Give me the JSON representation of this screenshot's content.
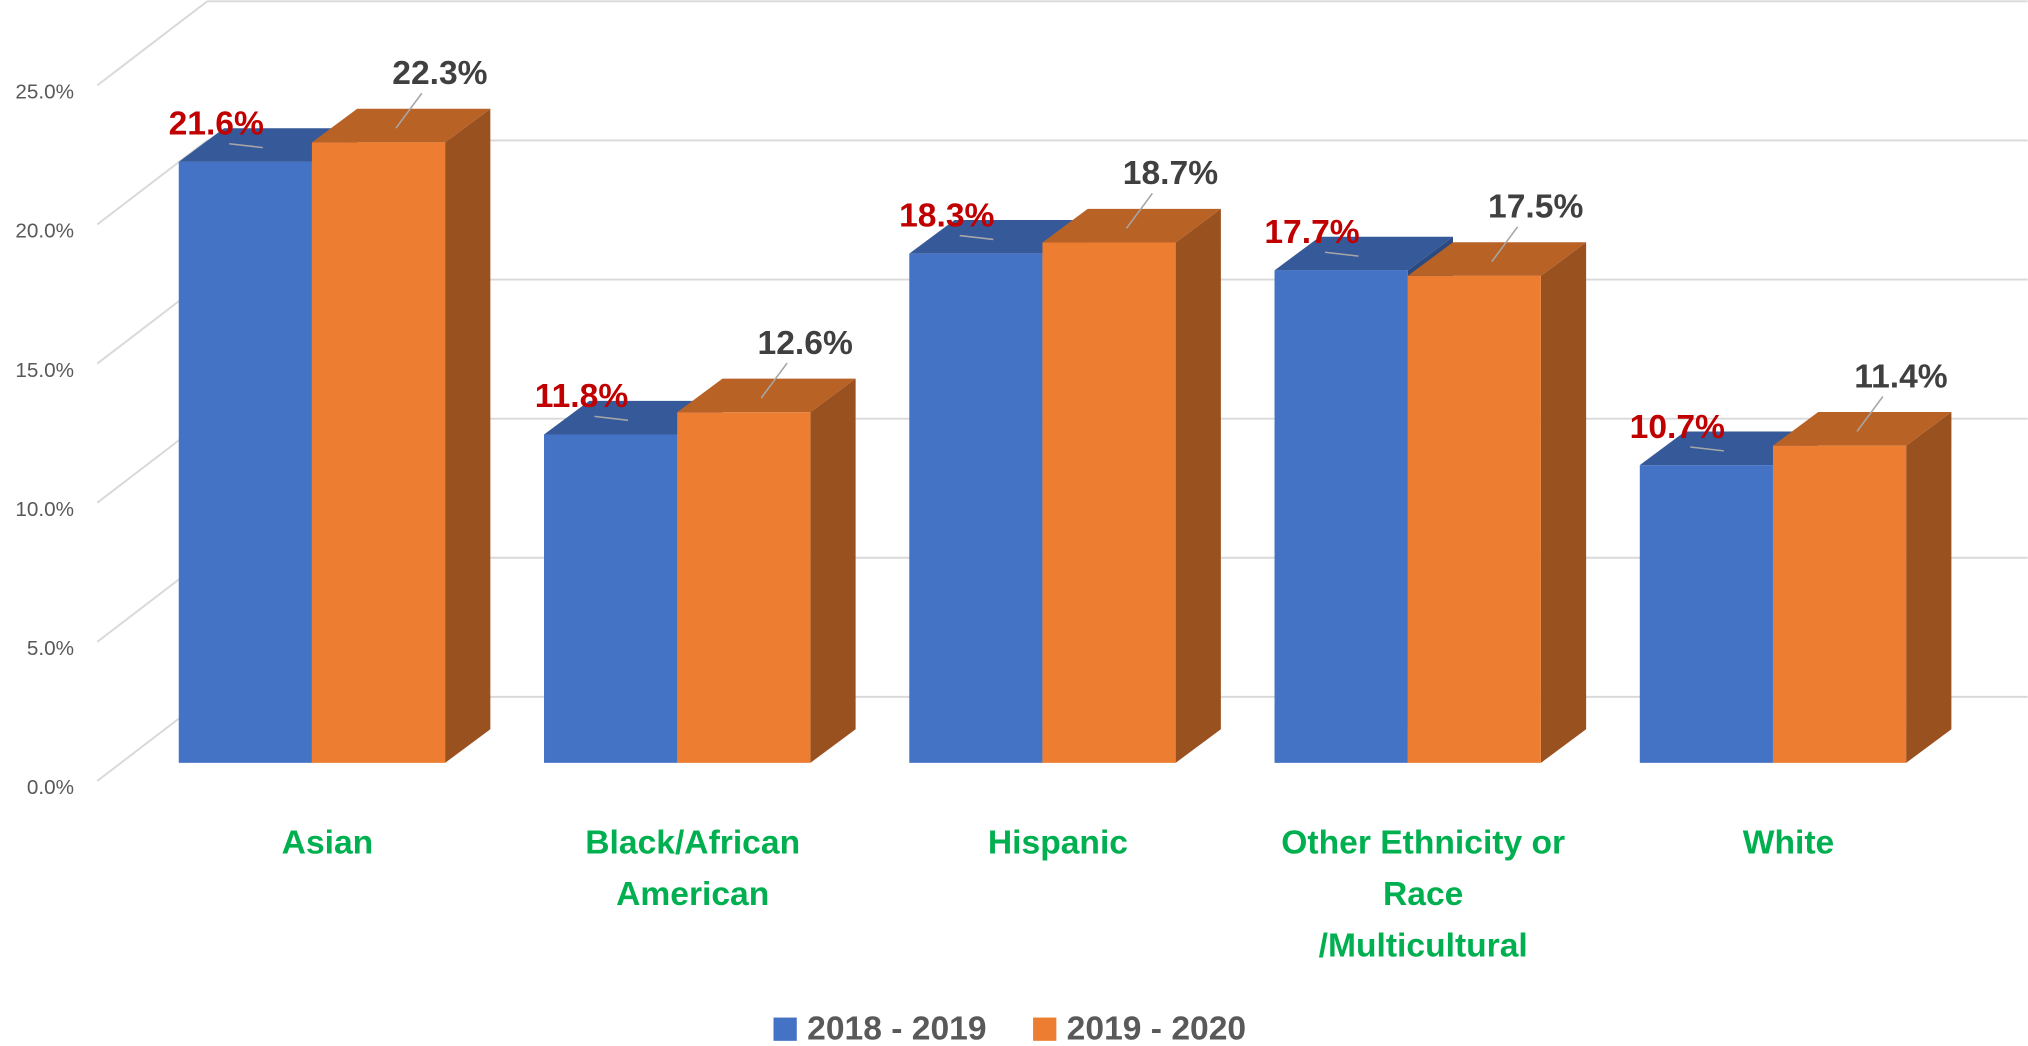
{
  "chart_data": {
    "type": "bar3d",
    "categories": [
      "Asian",
      "Black/African\nAmerican",
      "Hispanic",
      "Other Ethnicity or\nRace\n/Multicultural",
      "White"
    ],
    "series": [
      {
        "name": "2018 - 2019",
        "color": "#4472c4",
        "label_color": "#c00000",
        "values": [
          21.6,
          11.8,
          18.3,
          17.7,
          10.7
        ],
        "value_labels": [
          "21.6%",
          "11.8%",
          "18.3%",
          "17.7%",
          "10.7%"
        ]
      },
      {
        "name": "2019 - 2020",
        "color": "#ed7d31",
        "label_color": "#404040",
        "values": [
          22.3,
          12.6,
          18.7,
          17.5,
          11.4
        ],
        "value_labels": [
          "22.3%",
          "12.6%",
          "18.7%",
          "17.5%",
          "11.4%"
        ]
      }
    ],
    "ylim": [
      0,
      25
    ],
    "yticks": [
      {
        "value": 0,
        "label": "0.0%"
      },
      {
        "value": 5,
        "label": "5.0%"
      },
      {
        "value": 10,
        "label": "10.0%"
      },
      {
        "value": 15,
        "label": "15.0%"
      },
      {
        "value": 20,
        "label": "20.0%"
      },
      {
        "value": 25,
        "label": "25.0%"
      }
    ],
    "grid": true,
    "category_color": "#00b050",
    "legend": "bottom"
  }
}
